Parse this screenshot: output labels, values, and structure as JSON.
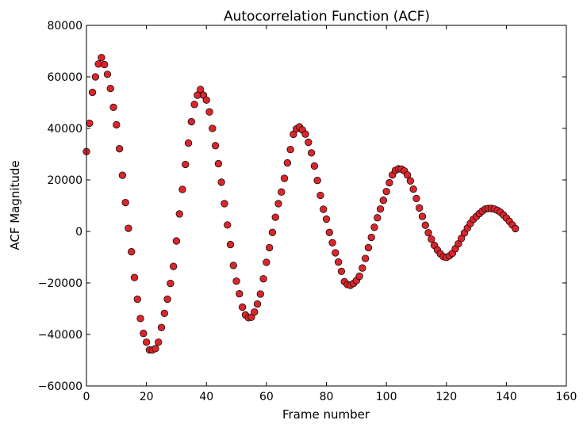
{
  "chart_data": {
    "type": "scatter",
    "title": "Autocorrelation Function (ACF)",
    "xlabel": "Frame number",
    "ylabel": "ACF Magnitude",
    "xlim": [
      0,
      160
    ],
    "ylim": [
      -60000,
      80000
    ],
    "xticks": [
      "0",
      "20",
      "40",
      "60",
      "80",
      "100",
      "120",
      "140",
      "160"
    ],
    "yticks": [
      "80000",
      "60000",
      "40000",
      "20000",
      "0",
      "−20000",
      "−40000",
      "−60000"
    ],
    "marker_color": "#d9262c",
    "marker_edge_color": "#000000",
    "grid": false,
    "legend": "none",
    "x": [
      0,
      1,
      2,
      3,
      4,
      5,
      6,
      7,
      8,
      9,
      10,
      11,
      12,
      13,
      14,
      15,
      16,
      17,
      18,
      19,
      20,
      21,
      22,
      23,
      24,
      25,
      26,
      27,
      28,
      29,
      30,
      31,
      32,
      33,
      34,
      35,
      36,
      37,
      38,
      39,
      40,
      41,
      42,
      43,
      44,
      45,
      46,
      47,
      48,
      49,
      50,
      51,
      52,
      53,
      54,
      55,
      56,
      57,
      58,
      59,
      60,
      61,
      62,
      63,
      64,
      65,
      66,
      67,
      68,
      69,
      70,
      71,
      72,
      73,
      74,
      75,
      76,
      77,
      78,
      79,
      80,
      81,
      82,
      83,
      84,
      85,
      86,
      87,
      88,
      89,
      90,
      91,
      92,
      93,
      94,
      95,
      96,
      97,
      98,
      99,
      100,
      101,
      102,
      103,
      104,
      105,
      106,
      107,
      108,
      109,
      110,
      111,
      112,
      113,
      114,
      115,
      116,
      117,
      118,
      119,
      120,
      121,
      122,
      123,
      124,
      125,
      126,
      127,
      128,
      129,
      130,
      131,
      132,
      133,
      134,
      135,
      136,
      137,
      138,
      139,
      140,
      141,
      142,
      143
    ],
    "y": [
      31000,
      42000,
      54000,
      60000,
      65000,
      67500,
      64800,
      61000,
      55500,
      48200,
      41400,
      32100,
      21800,
      11200,
      1200,
      -7900,
      -17900,
      -26300,
      -33800,
      -39600,
      -43000,
      -46000,
      -46000,
      -45500,
      -43000,
      -37300,
      -31800,
      -26300,
      -20200,
      -13600,
      -3700,
      6800,
      16300,
      26000,
      34300,
      42600,
      49300,
      52900,
      55100,
      52900,
      51000,
      46400,
      40000,
      33300,
      26300,
      19100,
      10800,
      2500,
      -5100,
      -13200,
      -19300,
      -24200,
      -29400,
      -32400,
      -33500,
      -33300,
      -31300,
      -28200,
      -24300,
      -18400,
      -12000,
      -6300,
      -400,
      5500,
      10800,
      15300,
      20600,
      26600,
      31800,
      37700,
      39800,
      40600,
      39400,
      37800,
      34600,
      30500,
      25400,
      19800,
      14000,
      8600,
      4800,
      -400,
      -4400,
      -8300,
      -11900,
      -15500,
      -19500,
      -20600,
      -20900,
      -20200,
      -19100,
      -17400,
      -14200,
      -10500,
      -6300,
      -2300,
      1600,
      5300,
      8700,
      12100,
      15500,
      18900,
      21900,
      23700,
      24300,
      24200,
      23500,
      21900,
      19600,
      16400,
      12800,
      9100,
      5800,
      2400,
      -500,
      -3000,
      -5400,
      -7200,
      -8700,
      -9800,
      -10100,
      -9500,
      -8500,
      -6700,
      -4800,
      -2700,
      -600,
      1300,
      3100,
      4700,
      5800,
      6900,
      7900,
      8700,
      8900,
      8900,
      8700,
      8200,
      7500,
      6400,
      5200,
      3900,
      2500,
      1100
    ]
  }
}
